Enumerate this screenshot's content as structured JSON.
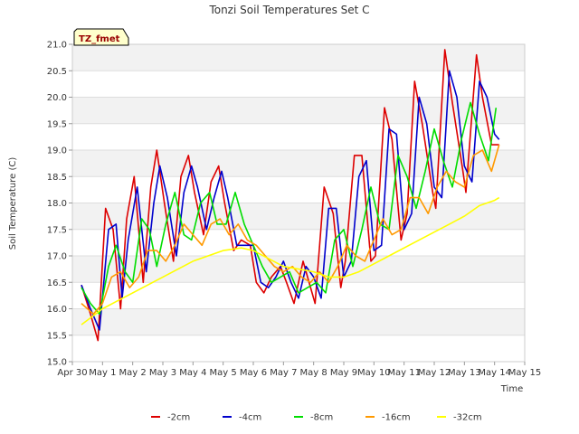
{
  "chart_data": {
    "type": "line",
    "title": "Tonzi Soil Temperatures Set C",
    "xlabel": "Time",
    "ylabel": "Soil Temperature (C)",
    "badge": "TZ_fmet",
    "ylim": [
      15.0,
      21.0
    ],
    "xlim": [
      0,
      15
    ],
    "yticks": [
      "15.0",
      "15.5",
      "16.0",
      "16.5",
      "17.0",
      "17.5",
      "18.0",
      "18.5",
      "19.0",
      "19.5",
      "20.0",
      "20.5",
      "21.0"
    ],
    "xticks": [
      "Apr 30",
      "May 1",
      "May 2",
      "May 3",
      "May 4",
      "May 5",
      "May 6",
      "May 7",
      "May 8",
      "May 9",
      "May 10",
      "May 11",
      "May 12",
      "May 13",
      "May 14",
      "May 15"
    ],
    "legend_position": "bottom",
    "grid": true,
    "series": [
      {
        "name": "-2cm",
        "color": "#dd0000",
        "x": [
          0.3,
          0.6,
          0.85,
          1.1,
          1.35,
          1.6,
          1.8,
          2.05,
          2.35,
          2.6,
          2.8,
          3.05,
          3.35,
          3.6,
          3.85,
          4.05,
          4.35,
          4.6,
          4.85,
          5.05,
          5.35,
          5.6,
          5.9,
          6.1,
          6.35,
          6.6,
          6.9,
          7.1,
          7.35,
          7.65,
          7.9,
          8.05,
          8.35,
          8.65,
          8.9,
          9.05,
          9.35,
          9.6,
          9.9,
          10.05,
          10.35,
          10.6,
          10.9,
          11.1,
          11.35,
          11.6,
          11.95,
          12.05,
          12.35,
          12.6,
          12.95,
          13.05,
          13.4,
          13.6,
          13.9,
          14.15
        ],
        "y": [
          16.45,
          15.9,
          15.4,
          17.9,
          17.5,
          16.0,
          17.7,
          18.5,
          16.5,
          18.3,
          19.0,
          18.0,
          16.9,
          18.5,
          18.9,
          18.2,
          17.4,
          18.4,
          18.7,
          18.0,
          17.1,
          17.3,
          17.2,
          16.5,
          16.3,
          16.6,
          16.8,
          16.5,
          16.1,
          16.9,
          16.4,
          16.1,
          18.3,
          17.8,
          16.4,
          16.9,
          18.9,
          18.9,
          16.9,
          17.0,
          19.8,
          19.2,
          17.3,
          17.8,
          20.3,
          19.5,
          18.2,
          17.9,
          20.9,
          19.9,
          18.6,
          18.2,
          20.8,
          20.0,
          19.1,
          19.1
        ]
      },
      {
        "name": "-4cm",
        "color": "#0000cc",
        "x": [
          0.3,
          0.6,
          0.9,
          1.2,
          1.45,
          1.65,
          1.85,
          2.15,
          2.45,
          2.7,
          2.9,
          3.15,
          3.45,
          3.7,
          3.95,
          4.15,
          4.45,
          4.7,
          4.95,
          5.15,
          5.45,
          5.7,
          6.0,
          6.25,
          6.5,
          6.75,
          7.0,
          7.25,
          7.5,
          7.75,
          8.0,
          8.25,
          8.5,
          8.75,
          9.0,
          9.25,
          9.5,
          9.75,
          10.0,
          10.25,
          10.5,
          10.75,
          11.0,
          11.25,
          11.5,
          11.75,
          12.0,
          12.25,
          12.5,
          12.75,
          13.0,
          13.25,
          13.5,
          13.75,
          14.0,
          14.15
        ],
        "y": [
          16.45,
          16.0,
          15.6,
          17.5,
          17.6,
          16.2,
          17.3,
          18.3,
          16.7,
          18.0,
          18.7,
          18.1,
          17.0,
          18.2,
          18.7,
          18.3,
          17.5,
          18.1,
          18.6,
          18.1,
          17.2,
          17.2,
          17.2,
          16.5,
          16.4,
          16.6,
          16.9,
          16.5,
          16.2,
          16.8,
          16.6,
          16.2,
          17.9,
          17.9,
          16.6,
          16.9,
          18.5,
          18.8,
          17.1,
          17.2,
          19.4,
          19.3,
          17.5,
          17.8,
          20.0,
          19.5,
          18.3,
          18.1,
          20.5,
          20.0,
          18.7,
          18.4,
          20.3,
          20.0,
          19.3,
          19.2
        ]
      },
      {
        "name": "-8cm",
        "color": "#00dd00",
        "x": [
          0.3,
          0.6,
          0.9,
          1.2,
          1.45,
          1.75,
          2.0,
          2.3,
          2.55,
          2.8,
          3.1,
          3.4,
          3.7,
          3.95,
          4.25,
          4.55,
          4.8,
          5.1,
          5.4,
          5.7,
          6.0,
          6.3,
          6.6,
          6.9,
          7.2,
          7.5,
          7.8,
          8.1,
          8.4,
          8.7,
          9.0,
          9.3,
          9.6,
          9.9,
          10.2,
          10.5,
          10.8,
          11.1,
          11.4,
          11.7,
          12.0,
          12.3,
          12.6,
          12.9,
          13.2,
          13.5,
          13.8,
          14.05
        ],
        "y": [
          16.4,
          16.1,
          15.9,
          16.8,
          17.2,
          16.7,
          16.5,
          17.7,
          17.5,
          16.8,
          17.6,
          18.2,
          17.4,
          17.3,
          18.0,
          18.2,
          17.6,
          17.6,
          18.2,
          17.6,
          17.2,
          16.8,
          16.5,
          16.6,
          16.7,
          16.3,
          16.4,
          16.5,
          16.3,
          17.3,
          17.5,
          16.8,
          17.5,
          18.3,
          17.6,
          17.5,
          18.9,
          18.5,
          17.9,
          18.6,
          19.4,
          18.8,
          18.3,
          19.2,
          19.9,
          19.3,
          18.8,
          19.8
        ]
      },
      {
        "name": "-16cm",
        "color": "#ff9900",
        "x": [
          0.3,
          0.7,
          1.0,
          1.3,
          1.6,
          1.9,
          2.2,
          2.5,
          2.8,
          3.1,
          3.4,
          3.7,
          4.0,
          4.3,
          4.6,
          4.9,
          5.2,
          5.5,
          5.8,
          6.1,
          6.4,
          6.7,
          7.0,
          7.3,
          7.6,
          7.9,
          8.2,
          8.5,
          8.8,
          9.1,
          9.4,
          9.7,
          10.0,
          10.3,
          10.6,
          10.9,
          11.2,
          11.5,
          11.8,
          12.1,
          12.4,
          12.7,
          13.0,
          13.3,
          13.6,
          13.9,
          14.15
        ],
        "y": [
          16.1,
          15.9,
          16.1,
          16.6,
          16.7,
          16.4,
          16.6,
          17.1,
          17.1,
          16.9,
          17.2,
          17.6,
          17.4,
          17.2,
          17.6,
          17.7,
          17.4,
          17.6,
          17.3,
          17.2,
          17.0,
          16.8,
          16.7,
          16.8,
          16.6,
          16.5,
          16.7,
          16.5,
          16.8,
          17.2,
          17.0,
          16.9,
          17.3,
          17.7,
          17.4,
          17.5,
          18.1,
          18.1,
          17.8,
          18.3,
          18.6,
          18.4,
          18.3,
          18.9,
          19.0,
          18.6,
          19.1
        ]
      },
      {
        "name": "-32cm",
        "color": "#ffff00",
        "x": [
          0.3,
          1.0,
          2.0,
          3.0,
          4.0,
          5.0,
          5.6,
          6.0,
          6.5,
          7.0,
          7.5,
          8.0,
          8.5,
          9.0,
          9.5,
          10.0,
          10.5,
          11.0,
          11.5,
          12.0,
          12.5,
          13.0,
          13.5,
          14.0,
          14.15
        ],
        "y": [
          15.7,
          16.0,
          16.3,
          16.6,
          16.9,
          17.1,
          17.15,
          17.1,
          16.95,
          16.8,
          16.75,
          16.7,
          16.6,
          16.6,
          16.7,
          16.85,
          17.0,
          17.15,
          17.3,
          17.45,
          17.6,
          17.75,
          17.95,
          18.05,
          18.1
        ]
      }
    ]
  }
}
